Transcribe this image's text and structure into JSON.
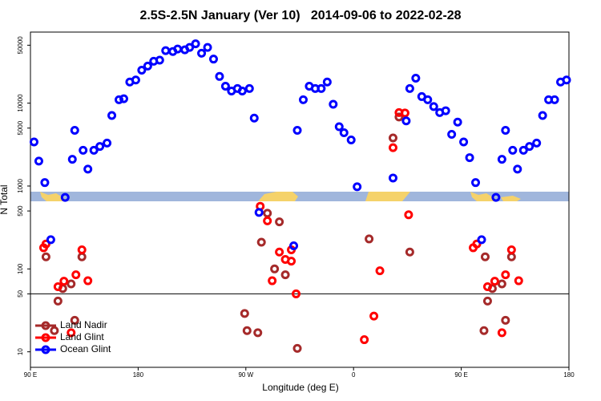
{
  "chart_data": {
    "type": "scatter",
    "title": "2.5S-2.5N January (Ver 10)   2014-09-06 to 2022-02-28",
    "xlabel": "Longitude (deg E)",
    "ylabel": "N Total",
    "xlim": [
      90,
      540
    ],
    "xticks": [
      {
        "value": 90,
        "label": "90 E"
      },
      180,
      {
        "value": 270,
        "label": "90 W"
      },
      {
        "value": 360,
        "label": "0"
      },
      {
        "value": 450,
        "label": "90 E"
      },
      {
        "value": 540,
        "label": "180"
      }
    ],
    "ylim": [
      6.5,
      72000
    ],
    "log_y": true,
    "yticks": [
      10,
      50,
      100,
      500,
      1000,
      5000,
      10000,
      50000
    ],
    "hlines": [
      50
    ],
    "legend": "bottom-left",
    "series": [
      {
        "name": "Land Nadir",
        "color": "#a52a2a",
        "x": [
          103,
          110,
          113,
          117,
          124,
          127,
          133,
          269,
          271,
          280,
          283,
          288,
          294,
          298,
          303,
          313,
          373,
          393,
          398,
          407,
          470,
          472,
          476,
          469,
          484,
          487,
          492
        ],
        "values": [
          140,
          18,
          41,
          58,
          66,
          24,
          140,
          29,
          18,
          17,
          210,
          470,
          100,
          370,
          85,
          11,
          230,
          3800,
          6800,
          160,
          140,
          41,
          58,
          18,
          66,
          24,
          140
        ]
      },
      {
        "name": "Land Glint",
        "color": "#ff0000",
        "x": [
          101,
          103,
          113,
          118,
          124,
          128,
          133,
          138,
          282,
          288,
          292,
          298,
          303,
          308,
          308,
          312,
          369,
          377,
          382,
          393,
          398,
          403,
          406,
          460,
          463,
          472,
          478,
          484,
          487,
          492,
          498
        ],
        "values": [
          180,
          200,
          61,
          71,
          17,
          85,
          170,
          72,
          570,
          380,
          72,
          160,
          130,
          170,
          124,
          50,
          14,
          27,
          95,
          2900,
          7700,
          7600,
          450,
          180,
          200,
          61,
          71,
          17,
          85,
          170,
          72
        ]
      },
      {
        "name": "Ocean Glint",
        "color": "#0000ff",
        "x": [
          93,
          97,
          102,
          107,
          119,
          125,
          127,
          134,
          138,
          143,
          148,
          154,
          158,
          164,
          168,
          173,
          178,
          183,
          188,
          193,
          198,
          203,
          209,
          213,
          219,
          223,
          228,
          233,
          238,
          243,
          248,
          253,
          258,
          263,
          267,
          273,
          277,
          281,
          310,
          313,
          318,
          323,
          328,
          333,
          338,
          343,
          348,
          352,
          358,
          363,
          393,
          404,
          407,
          412,
          417,
          422,
          427,
          432,
          437,
          442,
          447,
          452,
          457,
          462,
          467,
          479,
          484,
          487,
          493,
          497,
          502,
          507,
          513,
          518,
          523,
          528,
          533,
          538
        ],
        "values": [
          3400,
          2000,
          1100,
          225,
          730,
          2100,
          4700,
          2700,
          1600,
          2700,
          3000,
          3300,
          7100,
          11000,
          11300,
          18000,
          19000,
          25000,
          28000,
          32000,
          33000,
          43000,
          42000,
          45000,
          44000,
          47000,
          52000,
          40000,
          47000,
          34000,
          21000,
          16000,
          14000,
          15000,
          14000,
          15000,
          6600,
          480,
          190,
          4700,
          11000,
          16000,
          15000,
          15000,
          18000,
          9700,
          5200,
          4400,
          3600,
          980,
          1250,
          6100,
          15000,
          20000,
          12000,
          11000,
          9100,
          7700,
          8100,
          4200,
          5900,
          3400,
          2200,
          1100,
          225,
          730,
          2100,
          4700,
          2700,
          1600,
          2700,
          3000,
          3300,
          7100,
          11000,
          11000,
          18000,
          19000
        ]
      }
    ]
  }
}
